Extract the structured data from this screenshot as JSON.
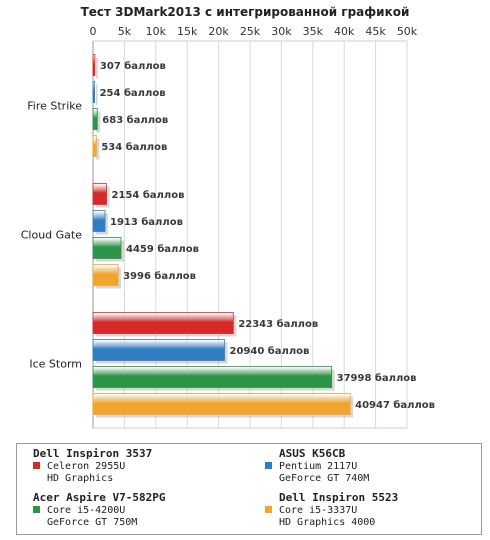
{
  "chart_data": {
    "type": "bar",
    "orientation": "horizontal",
    "title": "Тест 3DMark2013 с интегрированной графикой",
    "xlim": [
      0,
      50000
    ],
    "xticks": [
      0,
      5000,
      10000,
      15000,
      20000,
      25000,
      30000,
      35000,
      40000,
      45000,
      50000
    ],
    "xtick_labels": [
      "0",
      "5k",
      "10k",
      "15k",
      "20k",
      "25k",
      "30k",
      "35k",
      "40k",
      "45k",
      "50k"
    ],
    "grid": true,
    "legend_position": "bottom",
    "value_suffix": " баллов",
    "categories": [
      "Fire Strike",
      "Cloud Gate",
      "Ice Storm"
    ],
    "series": [
      {
        "name": "Dell Inspiron 3537",
        "details": [
          "Celeron 2955U",
          "HD Graphics"
        ],
        "color": "#d42a2a",
        "values": [
          307,
          2154,
          22343
        ]
      },
      {
        "name": "ASUS K56CB",
        "details": [
          "Pentium 2117U",
          "GeForce GT 740M"
        ],
        "color": "#2f7ec2",
        "values": [
          254,
          1913,
          20940
        ]
      },
      {
        "name": "Acer Aspire V7-582PG",
        "details": [
          "Core i5-4200U",
          "GeForce GT 750M"
        ],
        "color": "#2e9447",
        "values": [
          683,
          4459,
          37998
        ]
      },
      {
        "name": "Dell Inspiron 5523",
        "details": [
          "Core i5-3337U",
          "HD Graphics 4000"
        ],
        "color": "#f0a62e",
        "values": [
          534,
          3996,
          40947
        ]
      }
    ]
  }
}
